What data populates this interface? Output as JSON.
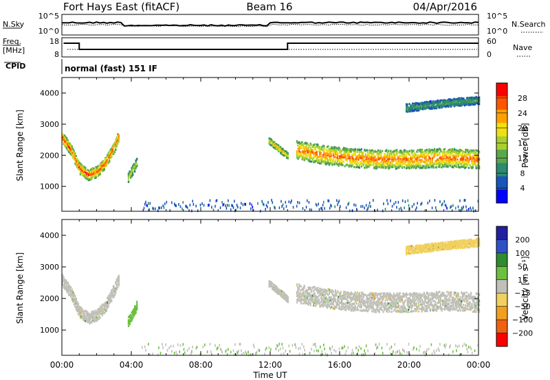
{
  "header": {
    "title": "Fort Hays East (fitACF)",
    "beam": "Beam 16",
    "date": "04/Apr/2016"
  },
  "top_panel": {
    "left_label": "N.Sky",
    "right_label": "N.Search",
    "left_ticks": [
      "10^5",
      "10^0"
    ],
    "right_ticks": [
      "10^5",
      "10^0"
    ]
  },
  "freq_panel": {
    "label_line1": "Freq.",
    "label_line2": "[MHz]",
    "right_label": "Nave",
    "left_ticks": [
      "18",
      "8"
    ],
    "right_ticks": [
      "60",
      "0"
    ],
    "cpid_label": "CPID",
    "cpid_text": "normal (fast) 151 IF"
  },
  "colors": {
    "power_scale": [
      "#0000ff",
      "#1a55b8",
      "#2c8a70",
      "#5aa84a",
      "#a8d030",
      "#f0e010",
      "#ffa000",
      "#ff5500",
      "#ff0000"
    ],
    "velocity_scale": [
      "#2020a0",
      "#3050c8",
      "#2e8c2e",
      "#6cc040",
      "#c0c0b8",
      "#f0d060",
      "#f0a020",
      "#f06010",
      "#ff0000"
    ],
    "scatter_grey": "#c0c0b8"
  },
  "chart_data": [
    {
      "type": "heatmap",
      "name": "power",
      "xlabel": "",
      "ylabel": "Slant Range [km]",
      "xlim": [
        0,
        24
      ],
      "ylim": [
        200,
        4500
      ],
      "yticks": [
        "1000",
        "2000",
        "3000",
        "4000"
      ],
      "colorbar": {
        "label": "Power [dB]",
        "ticks": [
          "4",
          "8",
          "12",
          "16",
          "20",
          "24",
          "28"
        ],
        "range": [
          0,
          30
        ]
      },
      "regions": [
        {
          "x": [
            0.0,
            0.5,
            1.0,
            1.5,
            2.0,
            2.5,
            3.0,
            3.3
          ],
          "center": [
            2600,
            2200,
            1600,
            1400,
            1500,
            1800,
            2300,
            2700
          ],
          "width": 350,
          "peak": 28
        },
        {
          "x": [
            3.8,
            4.3
          ],
          "center": [
            1300,
            1800
          ],
          "width": 300,
          "peak": 18
        },
        {
          "x": [
            13.5,
            15.0,
            16.5,
            18.0,
            20.0,
            22.0,
            24.0
          ],
          "center": [
            2200,
            2050,
            1950,
            1900,
            1900,
            1950,
            1900
          ],
          "width": 600,
          "peak": 26
        },
        {
          "x": [
            11.9,
            13.0
          ],
          "center": [
            2500,
            2000
          ],
          "width": 200,
          "peak": 22
        },
        {
          "x": [
            19.8,
            22.0,
            24.0
          ],
          "center": [
            3550,
            3700,
            3800
          ],
          "width": 250,
          "peak": 10
        }
      ]
    },
    {
      "type": "heatmap",
      "name": "velocity",
      "xlabel": "Time UT",
      "ylabel": "Slant Range [km]",
      "xlim": [
        0,
        24
      ],
      "ylim": [
        200,
        4500
      ],
      "xticks": [
        "00:00",
        "04:00",
        "08:00",
        "12:00",
        "16:00",
        "20:00",
        "00:00"
      ],
      "yticks": [
        "1000",
        "2000",
        "3000",
        "4000"
      ],
      "colorbar": {
        "label": "Velocity [m s⁻¹]",
        "ticks": [
          "200",
          "100",
          "50",
          "15",
          "−15",
          "−50",
          "−100",
          "−200"
        ],
        "range": [
          -300,
          300
        ]
      },
      "regions": [
        {
          "x": [
            0.0,
            0.5,
            1.0,
            1.5,
            2.0,
            2.5,
            3.0,
            3.3
          ],
          "center": [
            2600,
            2200,
            1600,
            1400,
            1500,
            1800,
            2300,
            2700
          ],
          "width": 350,
          "value": 0
        },
        {
          "x": [
            3.8,
            4.3
          ],
          "center": [
            1300,
            1800
          ],
          "width": 300,
          "value": 60
        },
        {
          "x": [
            13.5,
            15.0,
            16.5,
            18.0,
            20.0,
            22.0,
            24.0
          ],
          "center": [
            2200,
            2050,
            1950,
            1900,
            1900,
            1950,
            1900
          ],
          "width": 600,
          "value": 0
        },
        {
          "x": [
            11.9,
            13.0
          ],
          "center": [
            2500,
            2000
          ],
          "width": 200,
          "value": 0
        },
        {
          "x": [
            19.8,
            22.0,
            24.0
          ],
          "center": [
            3550,
            3700,
            3800
          ],
          "width": 250,
          "value": -80
        }
      ]
    }
  ]
}
